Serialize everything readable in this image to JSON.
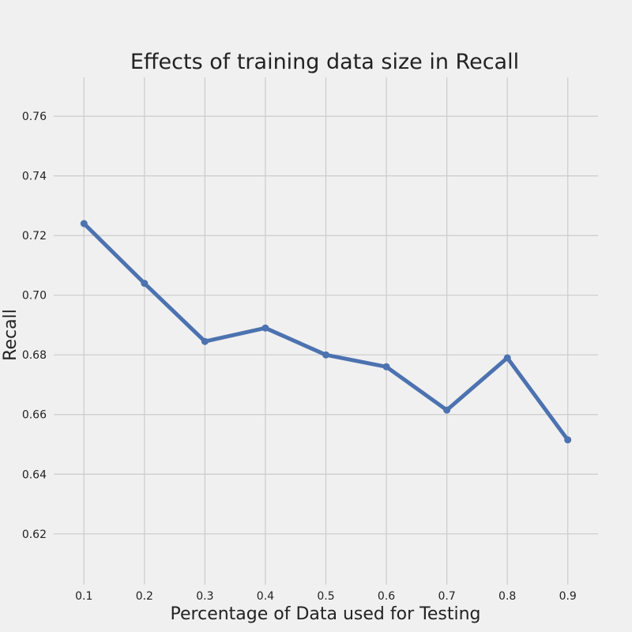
{
  "chart_data": {
    "type": "line",
    "title": "Effects of training data size in Recall",
    "xlabel": "Percentage of Data used for Testing",
    "ylabel": "Recall",
    "x": [
      0.1,
      0.2,
      0.3,
      0.4,
      0.5,
      0.6,
      0.7,
      0.8,
      0.9
    ],
    "x_tick_labels": [
      "0.1",
      "0.2",
      "0.3",
      "0.4",
      "0.5",
      "0.6",
      "0.7",
      "0.8",
      "0.9"
    ],
    "y_ticks": [
      0.62,
      0.64,
      0.66,
      0.68,
      0.7,
      0.72,
      0.74,
      0.76
    ],
    "y_tick_labels": [
      "0.62",
      "0.64",
      "0.66",
      "0.68",
      "0.70",
      "0.72",
      "0.74",
      "0.76"
    ],
    "xlim": [
      0.05,
      0.95
    ],
    "ylim": [
      0.603,
      0.773
    ],
    "grid": true,
    "series": [
      {
        "values": [
          0.724,
          0.704,
          0.6845,
          0.689,
          0.68,
          0.676,
          0.6615,
          0.679,
          0.6515
        ],
        "color": "#4c72b0"
      }
    ]
  }
}
